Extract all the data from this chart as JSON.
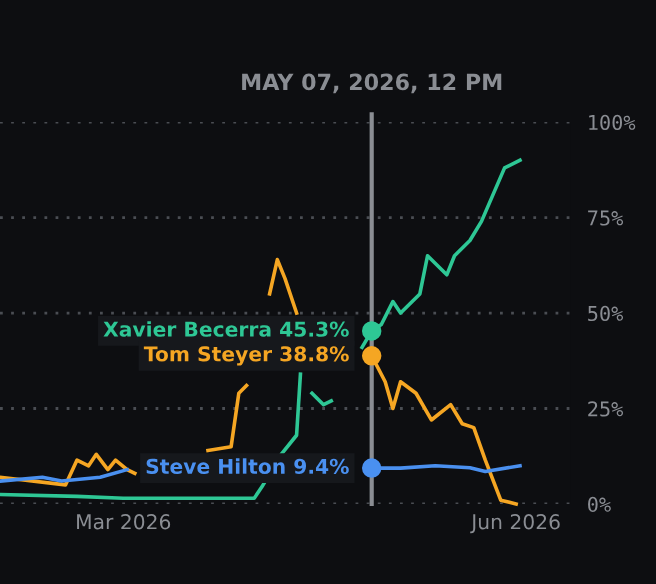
{
  "chart_data": {
    "type": "line",
    "xlim": [
      "2026-01-31",
      "2026-06-28"
    ],
    "xticks": [
      {
        "value": "2026-03-04",
        "label": "Mar 2026"
      },
      {
        "value": "2026-06-14",
        "label": "Jun 2026"
      }
    ],
    "ylim": [
      0,
      100
    ],
    "yticks": [
      {
        "value": 0,
        "label": "0%"
      },
      {
        "value": 25,
        "label": "25%"
      },
      {
        "value": 50,
        "label": "50%"
      },
      {
        "value": 75,
        "label": "75%"
      },
      {
        "value": 100,
        "label": "100%"
      }
    ],
    "grid": "y",
    "marker": "none",
    "line_style": "solid",
    "ref_lines": [
      {
        "axis": "x",
        "value": "2026-05-07T12:00",
        "label": "MAY 07, 2026, 12 PM",
        "color": "#8a8d93"
      }
    ],
    "series": [
      {
        "name": "Xavier Becerra",
        "color": "#2ec795",
        "x": [
          "2026-01-31",
          "2026-02-20",
          "2026-03-04",
          "2026-03-21",
          "2026-04-07",
          "2026-04-09",
          "2026-04-14",
          "2026-04-18",
          "2026-04-19",
          "2026-04-20",
          "2026-04-22",
          "2026-04-25",
          "2026-04-27",
          "2026-04-29",
          "2026-05-01",
          "2026-05-05",
          "2026-05-07T12:00",
          "2026-05-10",
          "2026-05-13",
          "2026-05-15",
          "2026-05-20",
          "2026-05-22",
          "2026-05-27",
          "2026-05-29",
          "2026-06-02",
          "2026-06-05",
          "2026-06-08",
          "2026-06-11",
          "2026-06-15"
        ],
        "values": [
          2.5,
          2,
          1.5,
          1.5,
          1.5,
          4.5,
          13,
          18,
          34,
          null,
          29,
          26,
          27,
          null,
          null,
          41,
          45.3,
          47,
          53,
          50,
          55,
          65,
          60,
          65,
          69,
          74,
          81,
          88,
          90
        ],
        "value_labels": [
          null,
          null,
          null,
          null,
          null,
          null,
          null,
          null,
          null,
          null,
          null,
          null,
          null,
          null,
          null,
          null,
          "45.3%",
          null,
          null,
          null,
          null,
          null,
          null,
          null,
          null,
          null,
          null,
          null,
          null
        ]
      },
      {
        "name": "Tom Steyer",
        "color": "#f5a623",
        "x": [
          "2026-01-31",
          "2026-02-17",
          "2026-02-20",
          "2026-02-23",
          "2026-02-25",
          "2026-02-28",
          "2026-03-02",
          "2026-03-05",
          "2026-03-07",
          "2026-03-21",
          "2026-03-26",
          "2026-04-01",
          "2026-04-03",
          "2026-04-05",
          "2026-04-08",
          "2026-04-11",
          "2026-04-13",
          "2026-04-15",
          "2026-04-18",
          "2026-04-19",
          "2026-04-21",
          "2026-04-23",
          "2026-04-26",
          "2026-04-30",
          "2026-05-03",
          "2026-05-07T12:00",
          "2026-05-11",
          "2026-05-13",
          "2026-05-15",
          "2026-05-19",
          "2026-05-23",
          "2026-05-28",
          "2026-05-31",
          "2026-06-03",
          "2026-06-06",
          "2026-06-10",
          "2026-06-14"
        ],
        "values": [
          7,
          5,
          11.5,
          10,
          13,
          9,
          11.5,
          9,
          8,
          null,
          14,
          15,
          29,
          31,
          null,
          55,
          64,
          59,
          50,
          null,
          null,
          null,
          null,
          null,
          null,
          38.8,
          32,
          25,
          32,
          29,
          22,
          26,
          21,
          20,
          11.5,
          1,
          0
        ],
        "value_labels": [
          null,
          null,
          null,
          null,
          null,
          null,
          null,
          null,
          null,
          null,
          null,
          null,
          null,
          null,
          null,
          null,
          null,
          null,
          null,
          null,
          null,
          null,
          null,
          null,
          null,
          "38.8%",
          null,
          null,
          null,
          null,
          null,
          null,
          null,
          null,
          null,
          null,
          null
        ]
      },
      {
        "name": "Steve Hilton",
        "color": "#4a90f0",
        "x": [
          "2026-01-31",
          "2026-02-11",
          "2026-02-16",
          "2026-02-26",
          "2026-03-05",
          "2026-03-06",
          "2026-05-07T12:00",
          "2026-05-15",
          "2026-05-24",
          "2026-06-02",
          "2026-06-06",
          "2026-06-15"
        ],
        "values": [
          6,
          7,
          6,
          7,
          9,
          null,
          9.4,
          9.4,
          10,
          9.5,
          8.5,
          10
        ],
        "value_labels": [
          null,
          null,
          null,
          null,
          null,
          null,
          "9.4%",
          null,
          null,
          null,
          null,
          null
        ]
      }
    ]
  }
}
